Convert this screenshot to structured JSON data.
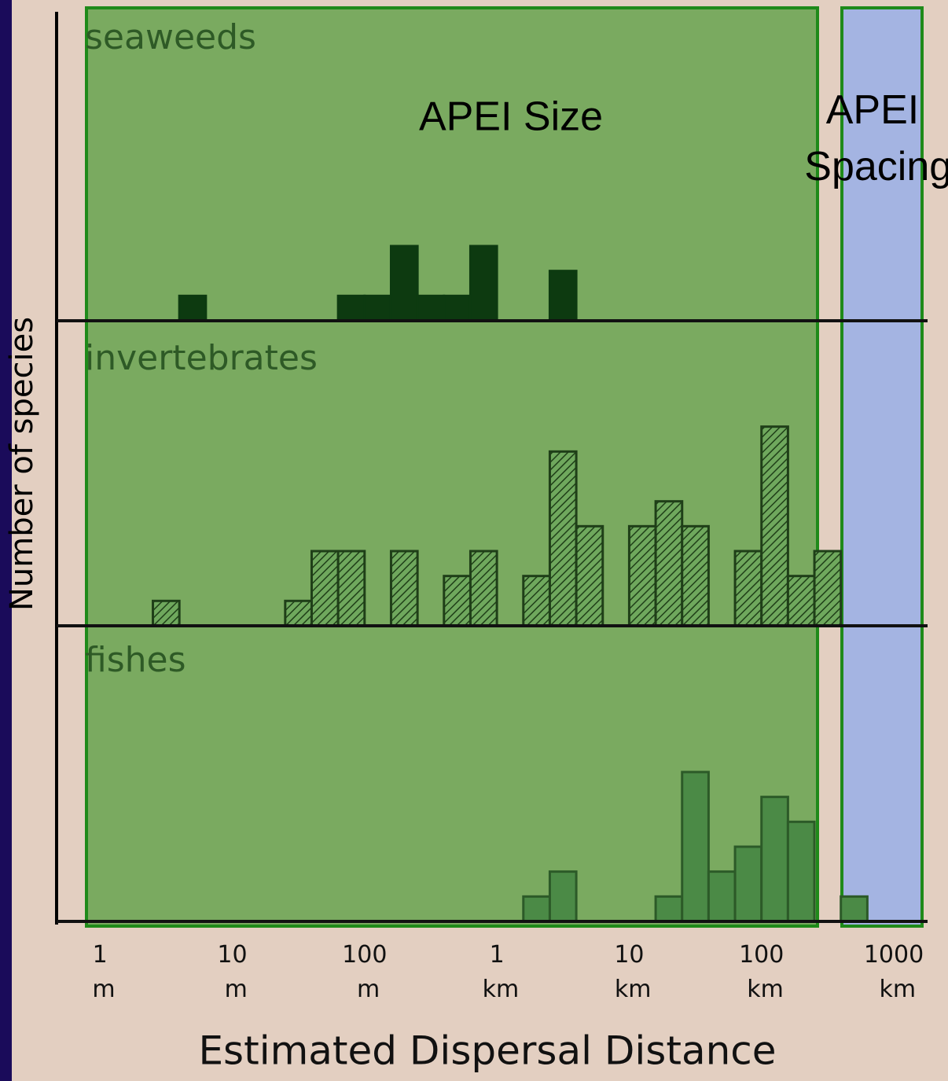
{
  "chart_data": {
    "type": "histogram",
    "ylabel": "Number of species",
    "xlabel": "Estimated Dispersal Distance",
    "xscale": "log",
    "xlim": [
      0.47,
      1800000
    ],
    "xticks": [
      {
        "value": 1,
        "label": "1 m"
      },
      {
        "value": 10,
        "label": "10 m"
      },
      {
        "value": 100,
        "label": "100 m"
      },
      {
        "value": 1000,
        "label": "1 km"
      },
      {
        "value": 10000,
        "label": "10 km"
      },
      {
        "value": 100000,
        "label": "100 km"
      },
      {
        "value": 1000000,
        "label": "1000 km"
      }
    ],
    "ylim": [
      0,
      12
    ],
    "bins": [
      1,
      1.585,
      2.512,
      3.981,
      6.31,
      10,
      15.85,
      25.12,
      39.81,
      63.1,
      100,
      158.5,
      251.2,
      398.1,
      631,
      1000,
      1585,
      2512,
      3981,
      6310,
      10000,
      15850,
      25120,
      39810,
      63100,
      100000,
      158500,
      251200,
      398100,
      631000
    ],
    "series": [
      {
        "name": "seaweeds",
        "color": "#0d3a10",
        "hatch": false,
        "values": [
          0,
          0,
          0,
          1,
          0,
          0,
          0,
          0,
          0,
          1,
          1,
          3,
          1,
          1,
          3,
          0,
          0,
          2,
          0,
          0,
          0,
          0,
          0,
          0,
          0,
          0,
          0,
          0,
          0
        ]
      },
      {
        "name": "invertebrates",
        "color": "#5f9a4e",
        "hatch": true,
        "values": [
          0,
          0,
          1,
          0,
          0,
          0,
          0,
          1,
          3,
          3,
          0,
          3,
          0,
          2,
          3,
          0,
          2,
          7,
          4,
          0,
          4,
          5,
          4,
          0,
          3,
          8,
          2,
          3,
          0
        ]
      },
      {
        "name": "fishes",
        "color": "#4b8a46",
        "hatch": false,
        "values": [
          0,
          0,
          0,
          0,
          0,
          0,
          0,
          0,
          0,
          0,
          0,
          0,
          0,
          0,
          0,
          0,
          1,
          2,
          0,
          0,
          0,
          1,
          6,
          2,
          3,
          5,
          4,
          0,
          1
        ]
      }
    ],
    "annotations": [
      "APEI Size",
      "APEI Spacing"
    ]
  }
}
